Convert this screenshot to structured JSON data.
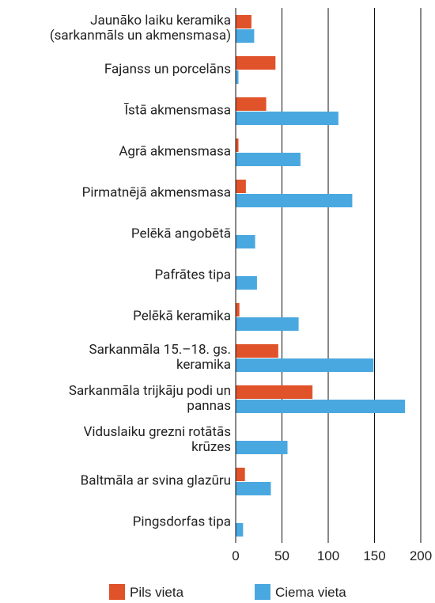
{
  "chart_data": {
    "type": "hbar",
    "categories": [
      "Jaunāko laiku keramika\n(sarkanmāls un akmensmasa)",
      "Fajanss un porcelāns",
      "Īstā akmensmasa",
      "Agrā akmensmasa",
      "Pirmatnējā akmensmasa",
      "Pelēkā angobētā",
      "Pafrātes tipa",
      "Pelēkā keramika",
      "Sarkanmāla 15.–18. gs.\nkeramika",
      "Sarkanmāla trijkāju podi un\npannas",
      "Viduslaiku grezni rotātās\nkrūzes",
      "Baltmāla ar svina glazūru",
      "Pingsdorfas tipa"
    ],
    "series": [
      {
        "name": "Pils vieta",
        "color": "#e0522a",
        "values": [
          17,
          43,
          33,
          3,
          11,
          0,
          0,
          4,
          46,
          83,
          0,
          10,
          0
        ]
      },
      {
        "name": "Ciema vieta",
        "color": "#4aa8e0",
        "values": [
          20,
          3,
          111,
          70,
          126,
          21,
          23,
          68,
          149,
          183,
          56,
          38,
          8
        ]
      }
    ],
    "xlim": [
      0,
      200
    ],
    "xticks": [
      0,
      50,
      100,
      150,
      200
    ],
    "grid": true,
    "legend": "bottom"
  }
}
